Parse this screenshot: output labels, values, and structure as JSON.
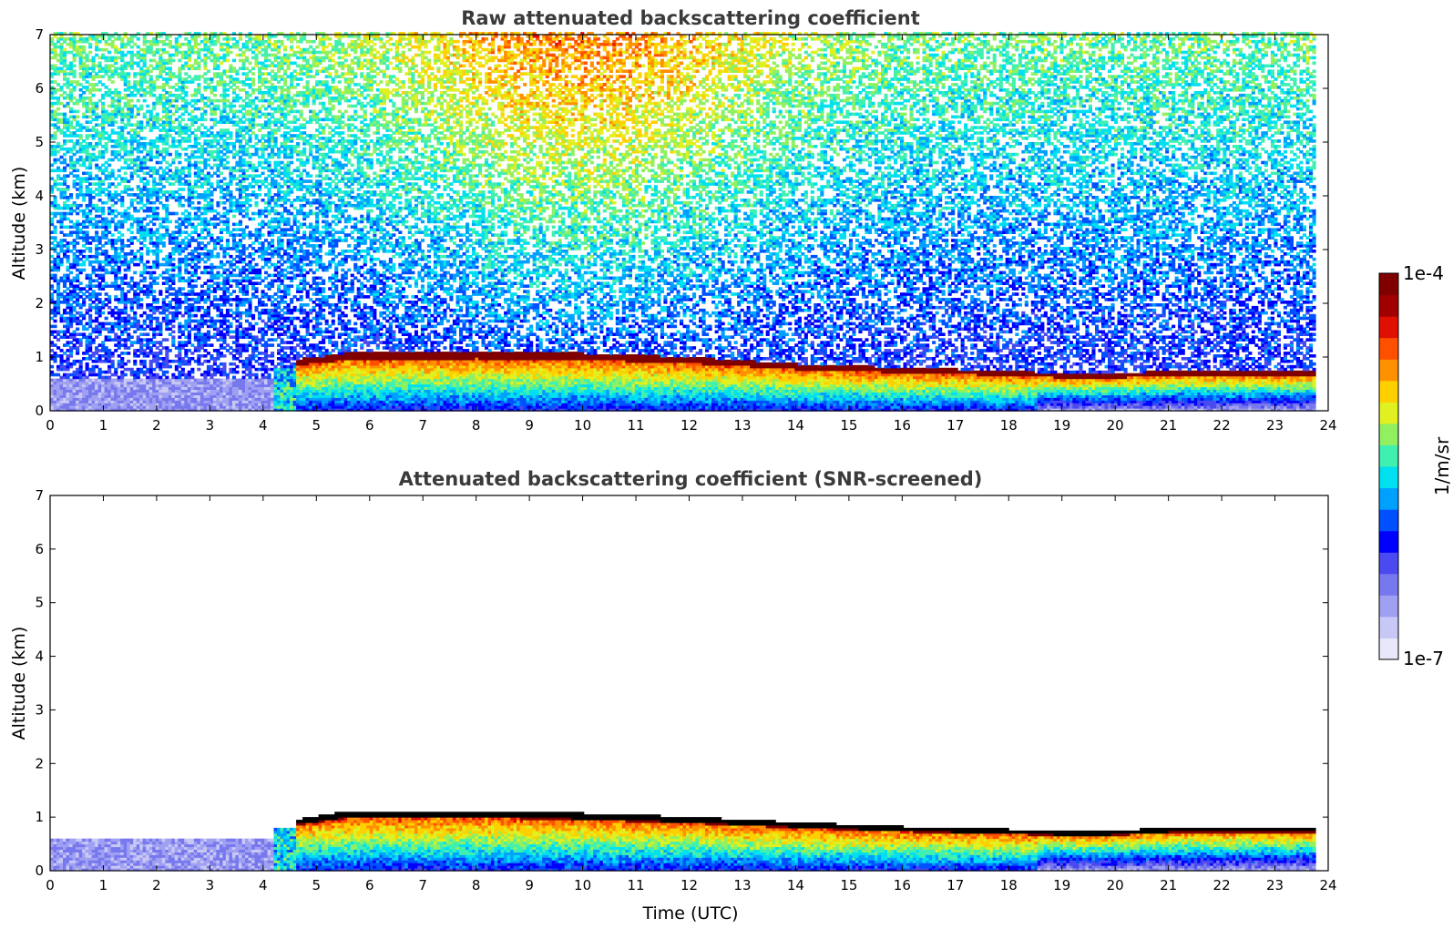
{
  "chart_data": [
    {
      "type": "heatmap",
      "title": "Raw attenuated backscattering coefficient",
      "xlabel": "",
      "ylabel": "Altitude (km)",
      "xlim": [
        0,
        24
      ],
      "ylim": [
        0,
        7
      ],
      "xticks": [
        "0",
        "1",
        "2",
        "3",
        "4",
        "5",
        "6",
        "7",
        "8",
        "9",
        "10",
        "11",
        "12",
        "13",
        "14",
        "15",
        "16",
        "17",
        "18",
        "19",
        "20",
        "21",
        "22",
        "23",
        "24"
      ],
      "yticks": [
        "0",
        "1",
        "2",
        "3",
        "4",
        "5",
        "6",
        "7"
      ],
      "data_end_hour": 23.7,
      "boundary_layer_top_km": [
        {
          "time": 4.7,
          "altitude": 0.95
        },
        {
          "time": 5.5,
          "altitude": 1.05
        },
        {
          "time": 8.0,
          "altitude": 1.08
        },
        {
          "time": 10.0,
          "altitude": 1.05
        },
        {
          "time": 12.0,
          "altitude": 0.98
        },
        {
          "time": 14.0,
          "altitude": 0.85
        },
        {
          "time": 16.0,
          "altitude": 0.78
        },
        {
          "time": 18.0,
          "altitude": 0.72
        },
        {
          "time": 19.5,
          "altitude": 0.65
        },
        {
          "time": 21.0,
          "altitude": 0.72
        },
        {
          "time": 23.7,
          "altitude": 0.72
        }
      ],
      "screened": false
    },
    {
      "type": "heatmap",
      "title": "Attenuated backscattering coefficient (SNR-screened)",
      "xlabel": "Time (UTC)",
      "ylabel": "Altitude (km)",
      "xlim": [
        0,
        24
      ],
      "ylim": [
        0,
        7
      ],
      "xticks": [
        "0",
        "1",
        "2",
        "3",
        "4",
        "5",
        "6",
        "7",
        "8",
        "9",
        "10",
        "11",
        "12",
        "13",
        "14",
        "15",
        "16",
        "17",
        "18",
        "19",
        "20",
        "21",
        "22",
        "23",
        "24"
      ],
      "yticks": [
        "0",
        "1",
        "2",
        "3",
        "4",
        "5",
        "6",
        "7"
      ],
      "data_end_hour": 23.7,
      "boundary_layer_top_km": [
        {
          "time": 4.7,
          "altitude": 0.95
        },
        {
          "time": 5.5,
          "altitude": 1.08
        },
        {
          "time": 8.0,
          "altitude": 1.1
        },
        {
          "time": 10.0,
          "altitude": 1.05
        },
        {
          "time": 12.0,
          "altitude": 0.98
        },
        {
          "time": 14.0,
          "altitude": 0.88
        },
        {
          "time": 16.0,
          "altitude": 0.8
        },
        {
          "time": 18.0,
          "altitude": 0.75
        },
        {
          "time": 19.5,
          "altitude": 0.7
        },
        {
          "time": 21.0,
          "altitude": 0.78
        },
        {
          "time": 23.7,
          "altitude": 0.78
        }
      ],
      "screened": true
    }
  ],
  "colorbar": {
    "label": "1/m/sr",
    "max_label": "1e-4",
    "min_label": "1e-7",
    "scale": "log",
    "colors": [
      "#e8e8fa",
      "#c8c8f6",
      "#a0a0f2",
      "#7878ee",
      "#4a4af0",
      "#0000ff",
      "#0050ff",
      "#00a0ff",
      "#00e0f0",
      "#40f0b0",
      "#90f060",
      "#e0f020",
      "#ffd000",
      "#ff9000",
      "#ff5000",
      "#e01000",
      "#a00000",
      "#800000"
    ]
  }
}
